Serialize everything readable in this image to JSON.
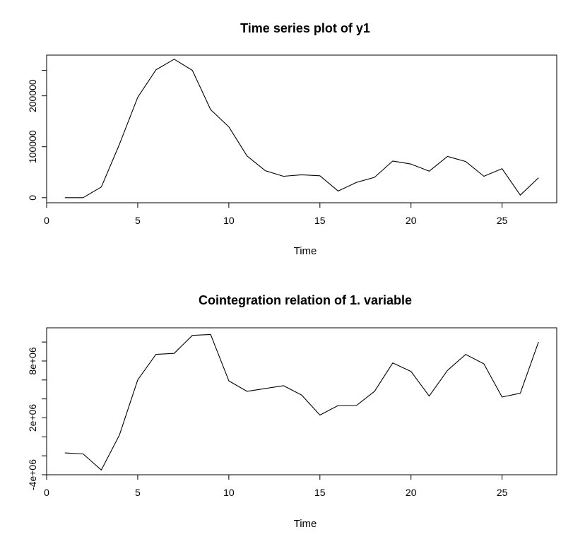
{
  "chart_data": [
    {
      "type": "line",
      "title": "Time series plot of y1",
      "xlabel": "Time",
      "ylabel": "",
      "xlim": [
        0,
        28
      ],
      "ylim": [
        -10000,
        280000
      ],
      "x_ticks": [
        0,
        5,
        10,
        15,
        20,
        25
      ],
      "y_ticks": [
        0,
        100000,
        200000
      ],
      "y_tick_labels": [
        "0",
        "100000",
        "200000"
      ],
      "y_axis_extra_tick": 250000,
      "x": [
        1,
        2,
        3,
        4,
        5,
        6,
        7,
        8,
        9,
        10,
        11,
        12,
        13,
        14,
        15,
        16,
        17,
        18,
        19,
        20,
        21,
        22,
        23,
        24,
        25,
        26,
        27
      ],
      "values": [
        0,
        0,
        21000,
        105000,
        197000,
        251000,
        272000,
        250000,
        173000,
        139000,
        82000,
        53000,
        42000,
        45000,
        43000,
        13000,
        30000,
        40000,
        72000,
        66000,
        52000,
        81000,
        71000,
        42000,
        57000,
        5000,
        39000
      ],
      "grid": false
    },
    {
      "type": "line",
      "title": "Cointegration relation of 1. variable",
      "xlabel": "Time",
      "ylabel": "",
      "xlim": [
        0,
        28
      ],
      "ylim": [
        -4000000,
        11500000
      ],
      "x_ticks": [
        0,
        5,
        10,
        15,
        20,
        25
      ],
      "y_ticks": [
        -4000000,
        -2000000,
        2000000,
        8000000
      ],
      "y_tick_labels": [
        "-4e+06",
        "",
        "2e+06",
        "8e+06"
      ],
      "y_axis_extra_ticks": [
        0,
        4000000,
        6000000,
        10000000
      ],
      "x": [
        1,
        2,
        3,
        4,
        5,
        6,
        7,
        8,
        9,
        10,
        11,
        12,
        13,
        14,
        15,
        16,
        17,
        18,
        19,
        20,
        21,
        22,
        23,
        24,
        25,
        26,
        27
      ],
      "values": [
        -1700000,
        -1800000,
        -3500000,
        200000,
        6000000,
        8700000,
        8800000,
        10700000,
        10800000,
        5900000,
        4800000,
        5100000,
        5400000,
        4400000,
        2300000,
        3300000,
        3300000,
        4800000,
        7800000,
        6900000,
        4300000,
        7000000,
        8700000,
        7700000,
        4200000,
        4600000,
        10000000
      ],
      "grid": false
    }
  ]
}
